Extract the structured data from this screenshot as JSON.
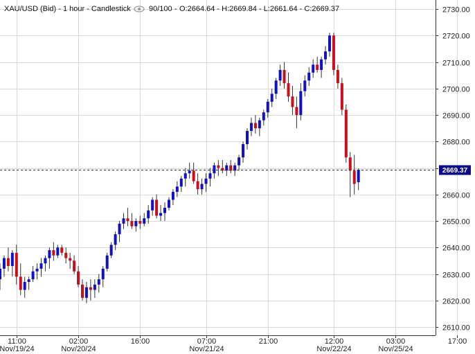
{
  "header": {
    "symbol": "XAU/USD (Bid) - 1 hour - Candlestick",
    "visibility_icon": "eye-icon",
    "bars_loaded": "90/100",
    "ohlc": "O:2664.64 - H:2669.84 - L:2661.64 - C:2669.37"
  },
  "price_badge": "2669.37",
  "colors": {
    "up": "#1010c8",
    "down": "#c8101a",
    "grid": "#d9d9d9",
    "badge_bg": "#0a0a8a",
    "badge_text": "#ffffff"
  },
  "chart_data": {
    "type": "candlestick",
    "title": "XAU/USD (Bid) - 1 hour - Candlestick",
    "ylim": [
      2605,
      2733
    ],
    "y_ticks": [
      2610,
      2620,
      2630,
      2640,
      2650,
      2660,
      2670,
      2680,
      2690,
      2700,
      2710,
      2720,
      2730
    ],
    "y_tick_labels": [
      "2610.00",
      "2620.00",
      "2630.00",
      "2640.00",
      "2650.00",
      "2660.00",
      "2670.00",
      "2680.00",
      "2690.00",
      "2700.00",
      "2710.00",
      "2720.00",
      "2730.00"
    ],
    "x_ticks": [
      {
        "bar": 4,
        "time": "11:00",
        "date": "Nov/19/24"
      },
      {
        "bar": 19,
        "time": "02:00",
        "date": "Nov/20/24"
      },
      {
        "bar": 34,
        "time": "16:00",
        "date": ""
      },
      {
        "bar": 50,
        "time": "07:00",
        "date": "Nov/21/24"
      },
      {
        "bar": 65,
        "time": "21:00",
        "date": ""
      },
      {
        "bar": 81,
        "time": "12:00",
        "date": "Nov/22/24"
      },
      {
        "bar": 96,
        "time": "03:00",
        "date": "Nov/25/24"
      },
      {
        "bar": 111,
        "time": "17:00",
        "date": ""
      }
    ],
    "current_price": 2669.37,
    "candles": [
      [
        2628,
        2634,
        2624,
        2632
      ],
      [
        2632,
        2637,
        2629,
        2636
      ],
      [
        2636,
        2640,
        2631,
        2633
      ],
      [
        2633,
        2639,
        2629,
        2638
      ],
      [
        2638,
        2641,
        2626,
        2629
      ],
      [
        2629,
        2634,
        2622,
        2624
      ],
      [
        2624,
        2629,
        2621,
        2627
      ],
      [
        2627,
        2629,
        2624,
        2628
      ],
      [
        2628,
        2633,
        2627,
        2631
      ],
      [
        2631,
        2634,
        2628,
        2632
      ],
      [
        2632,
        2636,
        2629,
        2634
      ],
      [
        2634,
        2637,
        2631,
        2636
      ],
      [
        2636,
        2640,
        2632,
        2639
      ],
      [
        2639,
        2642,
        2635,
        2637
      ],
      [
        2637,
        2641,
        2636,
        2640
      ],
      [
        2640,
        2641,
        2637,
        2638
      ],
      [
        2638,
        2640,
        2634,
        2636
      ],
      [
        2636,
        2638,
        2632,
        2635
      ],
      [
        2635,
        2637,
        2630,
        2631
      ],
      [
        2631,
        2633,
        2625,
        2626
      ],
      [
        2626,
        2628,
        2620,
        2621
      ],
      [
        2621,
        2627,
        2619,
        2625
      ],
      [
        2625,
        2628,
        2620,
        2624
      ],
      [
        2624,
        2628,
        2621,
        2626
      ],
      [
        2626,
        2630,
        2623,
        2628
      ],
      [
        2628,
        2633,
        2625,
        2632
      ],
      [
        2632,
        2638,
        2631,
        2637
      ],
      [
        2637,
        2642,
        2636,
        2641
      ],
      [
        2641,
        2646,
        2639,
        2645
      ],
      [
        2645,
        2650,
        2642,
        2649
      ],
      [
        2649,
        2653,
        2647,
        2651
      ],
      [
        2651,
        2655,
        2648,
        2650
      ],
      [
        2650,
        2653,
        2647,
        2648
      ],
      [
        2648,
        2651,
        2646,
        2650
      ],
      [
        2650,
        2652,
        2647,
        2649
      ],
      [
        2649,
        2653,
        2648,
        2651
      ],
      [
        2651,
        2656,
        2649,
        2654
      ],
      [
        2654,
        2659,
        2652,
        2658
      ],
      [
        2658,
        2660,
        2651,
        2652
      ],
      [
        2652,
        2656,
        2650,
        2653
      ],
      [
        2653,
        2657,
        2650,
        2655
      ],
      [
        2655,
        2659,
        2654,
        2658
      ],
      [
        2658,
        2662,
        2656,
        2661
      ],
      [
        2661,
        2665,
        2659,
        2663
      ],
      [
        2663,
        2667,
        2661,
        2666
      ],
      [
        2666,
        2670,
        2663,
        2668
      ],
      [
        2668,
        2672,
        2666,
        2669
      ],
      [
        2669,
        2672,
        2664,
        2665
      ],
      [
        2665,
        2668,
        2660,
        2662
      ],
      [
        2662,
        2666,
        2660,
        2664
      ],
      [
        2664,
        2668,
        2661,
        2666
      ],
      [
        2666,
        2670,
        2663,
        2668
      ],
      [
        2668,
        2672,
        2666,
        2671
      ],
      [
        2671,
        2673,
        2667,
        2670
      ],
      [
        2670,
        2673,
        2668,
        2669
      ],
      [
        2669,
        2672,
        2667,
        2671
      ],
      [
        2671,
        2673,
        2668,
        2669
      ],
      [
        2669,
        2672,
        2667,
        2671
      ],
      [
        2671,
        2675,
        2669,
        2674
      ],
      [
        2674,
        2680,
        2672,
        2679
      ],
      [
        2679,
        2685,
        2677,
        2684
      ],
      [
        2684,
        2689,
        2682,
        2687
      ],
      [
        2687,
        2690,
        2683,
        2685
      ],
      [
        2685,
        2689,
        2682,
        2688
      ],
      [
        2688,
        2692,
        2686,
        2691
      ],
      [
        2691,
        2696,
        2689,
        2695
      ],
      [
        2695,
        2700,
        2693,
        2698
      ],
      [
        2698,
        2704,
        2696,
        2703
      ],
      [
        2703,
        2709,
        2701,
        2707
      ],
      [
        2707,
        2710,
        2700,
        2702
      ],
      [
        2702,
        2706,
        2695,
        2697
      ],
      [
        2697,
        2701,
        2690,
        2693
      ],
      [
        2693,
        2697,
        2685,
        2690
      ],
      [
        2690,
        2702,
        2688,
        2699
      ],
      [
        2699,
        2705,
        2697,
        2703
      ],
      [
        2703,
        2708,
        2701,
        2706
      ],
      [
        2706,
        2711,
        2704,
        2709
      ],
      [
        2709,
        2712,
        2706,
        2707
      ],
      [
        2707,
        2712,
        2704,
        2711
      ],
      [
        2711,
        2716,
        2709,
        2714
      ],
      [
        2714,
        2721,
        2712,
        2720
      ],
      [
        2720,
        2721,
        2705,
        2707
      ],
      [
        2707,
        2709,
        2700,
        2702
      ],
      [
        2702,
        2704,
        2690,
        2692
      ],
      [
        2692,
        2694,
        2672,
        2674
      ],
      [
        2674,
        2676,
        2659,
        2669
      ],
      [
        2669,
        2675,
        2660,
        2664
      ],
      [
        2664.64,
        2669.84,
        2661.64,
        2669.37
      ]
    ]
  }
}
